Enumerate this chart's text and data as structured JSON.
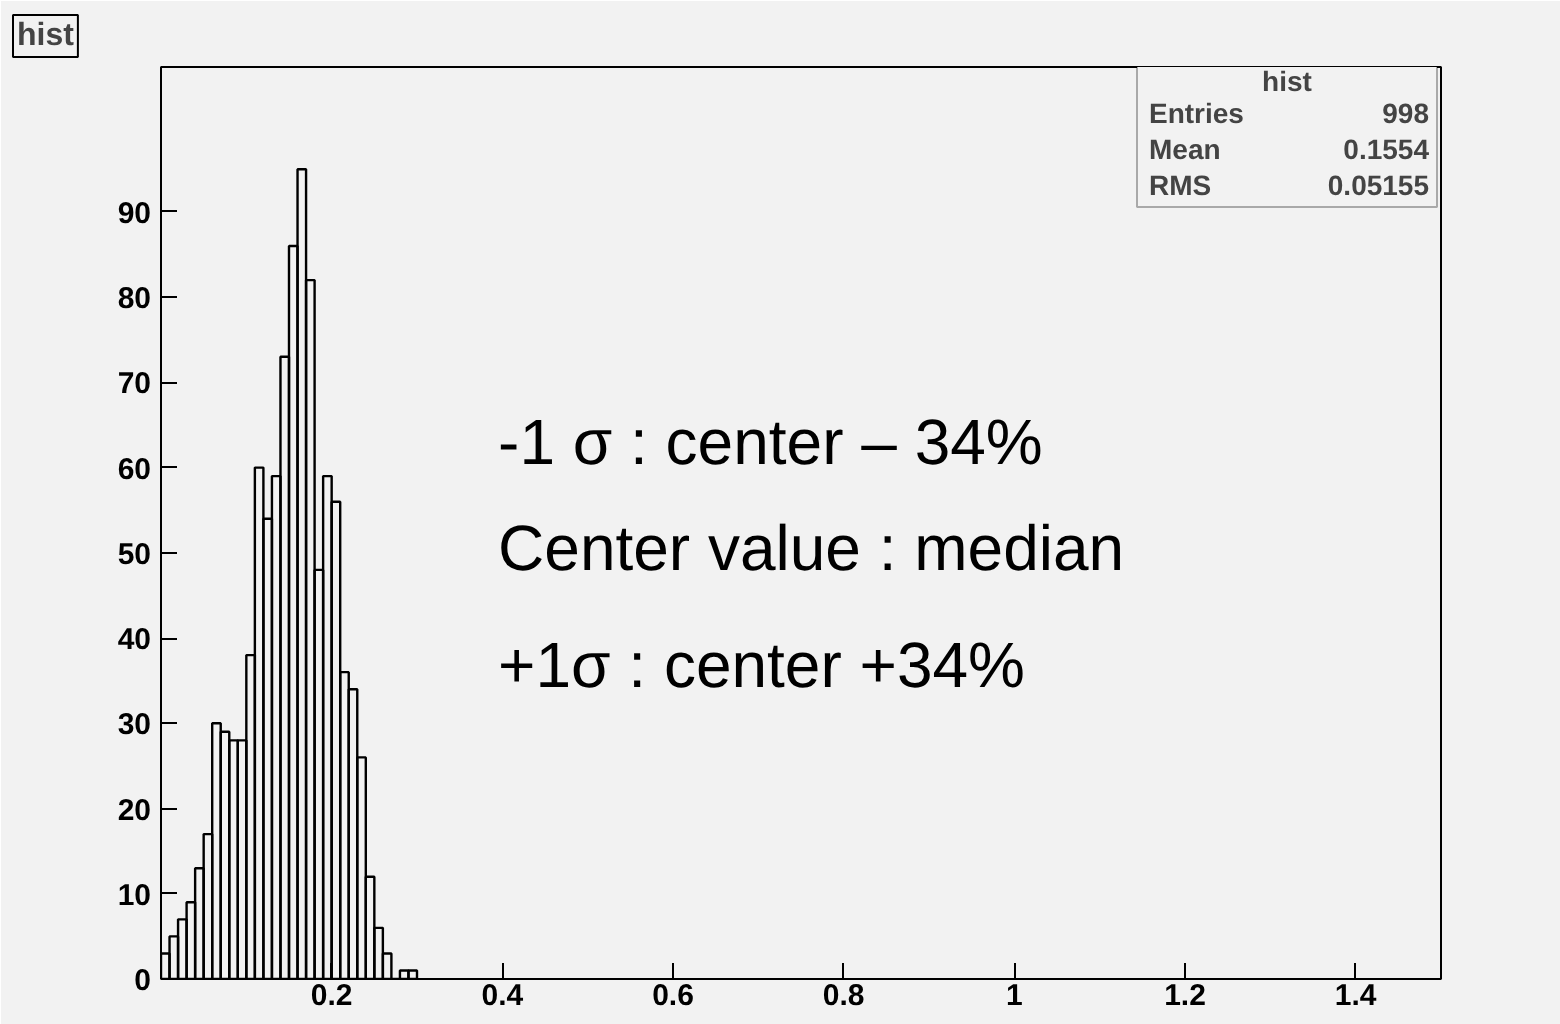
{
  "chart_data": {
    "type": "histogram",
    "title": "hist",
    "bins": [
      0,
      0.01,
      0.02,
      0.03,
      0.04,
      0.05,
      0.06,
      0.07,
      0.08,
      0.09,
      0.1,
      0.11,
      0.12,
      0.13,
      0.14,
      0.15,
      0.16,
      0.17,
      0.18,
      0.19,
      0.2,
      0.21,
      0.22,
      0.23,
      0.24,
      0.25,
      0.26,
      0.27,
      0.28,
      0.29,
      0.3
    ],
    "values": [
      3,
      5,
      7,
      9,
      13,
      17,
      30,
      29,
      28,
      28,
      38,
      60,
      54,
      59,
      73,
      86,
      95,
      82,
      48,
      59,
      56,
      36,
      34,
      26,
      12,
      6,
      3,
      0,
      1,
      1
    ],
    "color": "#000000",
    "xlim": [
      0,
      1.5
    ],
    "ylim": [
      0,
      107
    ],
    "xticks": [
      0.2,
      0.4,
      0.6,
      0.8,
      1,
      1.2,
      1.4
    ],
    "yticks": [
      0,
      10,
      20,
      30,
      40,
      50,
      60,
      70,
      80,
      90
    ],
    "grid": false,
    "annotations": [
      "-1 σ : center – 34%",
      "Center value : median",
      "+1σ : center +34%",
      "Entries 998",
      "Mean 0.1554",
      "RMS 0.05155"
    ]
  }
}
